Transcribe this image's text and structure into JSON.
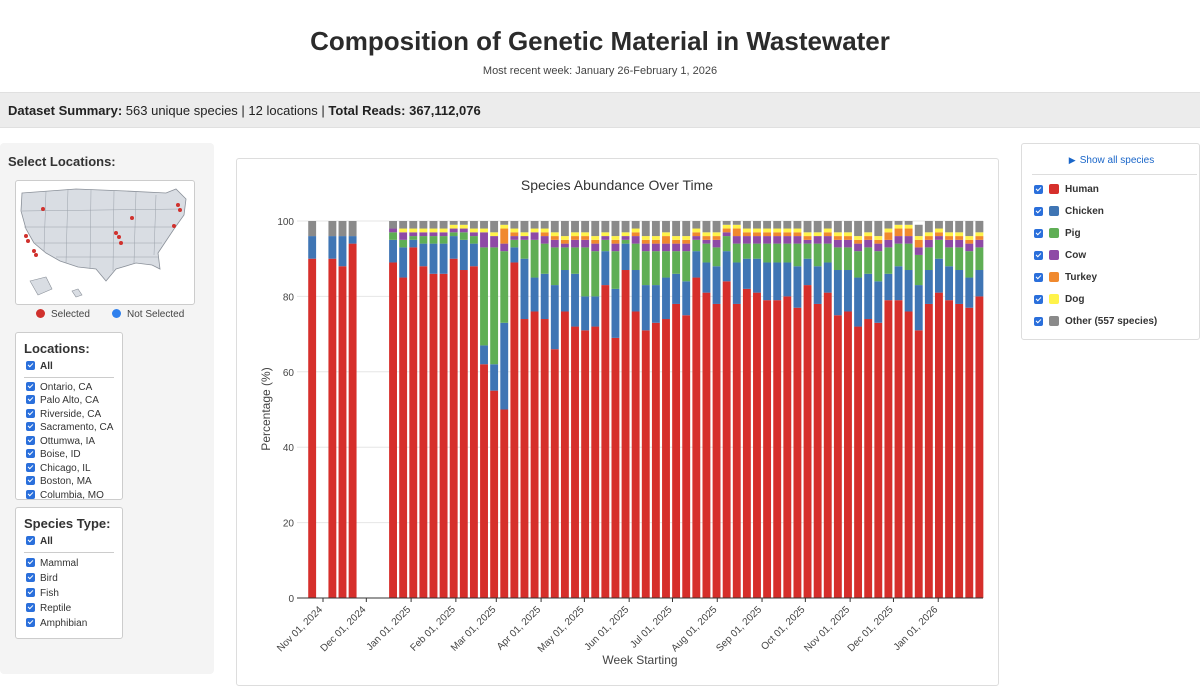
{
  "header": {
    "title": "Composition of Genetic Material in Wastewater",
    "subtitle": "Most recent week: January 26-February 1, 2026"
  },
  "summary": {
    "label": "Dataset Summary:",
    "stats": "563 unique species | 12 locations |",
    "reads_label": "Total Reads:",
    "reads_value": "367,112,076"
  },
  "sidebar": {
    "select_locations_title": "Select Locations:",
    "map_legend": {
      "selected": "Selected",
      "not_selected": "Not Selected",
      "selected_color": "#d0312d",
      "not_selected_color": "#2f80ed"
    },
    "locations": {
      "title": "Locations:",
      "all_label": "All",
      "items": [
        "Ontario, CA",
        "Palo Alto, CA",
        "Riverside, CA",
        "Sacramento, CA",
        "Ottumwa, IA",
        "Boise, ID",
        "Chicago, IL",
        "Boston, MA",
        "Columbia, MO"
      ]
    },
    "species_type": {
      "title": "Species Type:",
      "all_label": "All",
      "items": [
        "Mammal",
        "Bird",
        "Fish",
        "Reptile",
        "Amphibian"
      ]
    }
  },
  "legend_panel": {
    "show_all_label": "Show all species",
    "items": [
      {
        "label": "Human",
        "color": "#d62f2b"
      },
      {
        "label": "Chicken",
        "color": "#3f75b4"
      },
      {
        "label": "Pig",
        "color": "#5fae55"
      },
      {
        "label": "Cow",
        "color": "#8e4aa6"
      },
      {
        "label": "Turkey",
        "color": "#f0892e"
      },
      {
        "label": "Dog",
        "color": "#fff34a"
      },
      {
        "label": "Other (557 species)",
        "color": "#8a8a8a"
      }
    ]
  },
  "chart_data": {
    "type": "bar",
    "stacked": true,
    "title": "Species Abundance Over Time",
    "xlabel": "Week Starting",
    "ylabel": "Percentage (%)",
    "ylim": [
      0,
      100
    ],
    "yticks": [
      0,
      20,
      40,
      60,
      80,
      100
    ],
    "x_date_range": [
      "2024-10-14",
      "2026-02-01"
    ],
    "x_tick_labels": [
      "Nov 01, 2024",
      "Dec 01, 2024",
      "Jan 01, 2025",
      "Feb 01, 2025",
      "Mar 01, 2025",
      "Apr 01, 2025",
      "May 01, 2025",
      "Jun 01, 2025",
      "Jul 01, 2025",
      "Aug 01, 2025",
      "Sep 01, 2025",
      "Oct 01, 2025",
      "Nov 01, 2025",
      "Dec 01, 2025",
      "Jan 01, 2026"
    ],
    "x_tick_dates": [
      "2024-11-01",
      "2024-12-01",
      "2025-01-01",
      "2025-02-01",
      "2025-03-01",
      "2025-04-01",
      "2025-05-01",
      "2025-06-01",
      "2025-07-01",
      "2025-08-01",
      "2025-09-01",
      "2025-10-01",
      "2025-11-01",
      "2025-12-01",
      "2026-01-01"
    ],
    "categories": [
      "2024-10-21",
      "2024-11-04",
      "2024-11-11",
      "2024-11-18",
      "2024-12-16",
      "2024-12-23",
      "2024-12-30",
      "2025-01-06",
      "2025-01-13",
      "2025-01-20",
      "2025-01-27",
      "2025-02-03",
      "2025-02-10",
      "2025-02-17",
      "2025-02-24",
      "2025-03-03",
      "2025-03-10",
      "2025-03-17",
      "2025-03-24",
      "2025-03-31",
      "2025-04-07",
      "2025-04-14",
      "2025-04-21",
      "2025-04-28",
      "2025-05-05",
      "2025-05-12",
      "2025-05-19",
      "2025-05-26",
      "2025-06-02",
      "2025-06-09",
      "2025-06-16",
      "2025-06-23",
      "2025-06-30",
      "2025-07-07",
      "2025-07-14",
      "2025-07-21",
      "2025-07-28",
      "2025-08-04",
      "2025-08-11",
      "2025-08-18",
      "2025-08-25",
      "2025-09-01",
      "2025-09-08",
      "2025-09-15",
      "2025-09-22",
      "2025-09-29",
      "2025-10-06",
      "2025-10-13",
      "2025-10-20",
      "2025-10-27",
      "2025-11-03",
      "2025-11-10",
      "2025-11-17",
      "2025-11-24",
      "2025-12-01",
      "2025-12-08",
      "2025-12-15",
      "2025-12-22",
      "2025-12-29",
      "2026-01-05",
      "2026-01-12",
      "2026-01-19",
      "2026-01-26"
    ],
    "series": [
      {
        "name": "Human",
        "values": [
          90,
          90,
          88,
          94,
          89,
          85,
          93,
          88,
          86,
          86,
          90,
          87,
          88,
          62,
          55,
          50,
          89,
          74,
          76,
          74,
          66,
          76,
          72,
          71,
          72,
          83,
          69,
          87,
          76,
          71,
          73,
          74,
          78,
          75,
          85,
          81,
          78,
          84,
          78,
          82,
          81,
          79,
          79,
          80,
          77,
          83,
          78,
          81,
          75,
          76,
          72,
          74,
          73,
          79,
          79,
          76,
          71,
          78,
          81,
          79,
          78,
          77,
          80
        ]
      },
      {
        "name": "Chicken",
        "values": [
          6,
          6,
          8,
          2,
          6,
          8,
          2,
          6,
          8,
          8,
          6,
          8,
          6,
          5,
          7,
          23,
          4,
          16,
          9,
          12,
          17,
          11,
          14,
          9,
          8,
          9,
          13,
          7,
          11,
          12,
          10,
          11,
          8,
          9,
          7,
          8,
          10,
          8,
          11,
          8,
          9,
          10,
          10,
          9,
          11,
          7,
          10,
          8,
          12,
          11,
          13,
          12,
          11,
          7,
          9,
          11,
          12,
          9,
          9,
          9,
          9,
          8,
          7
        ]
      },
      {
        "name": "Pig",
        "values": [
          0,
          0,
          0,
          0,
          2,
          2,
          1,
          2,
          2,
          2,
          1,
          2,
          2,
          26,
          31,
          19,
          2,
          5,
          10,
          8,
          10,
          6,
          7,
          13,
          12,
          3,
          10,
          1,
          7,
          9,
          9,
          7,
          6,
          8,
          3,
          5,
          5,
          4,
          5,
          4,
          4,
          5,
          5,
          5,
          6,
          4,
          6,
          5,
          6,
          6,
          7,
          7,
          8,
          7,
          6,
          7,
          8,
          6,
          5,
          5,
          6,
          7,
          6
        ]
      },
      {
        "name": "Cow",
        "values": [
          0,
          0,
          0,
          0,
          1,
          2,
          1,
          1,
          1,
          1,
          1,
          1,
          1,
          4,
          3,
          2,
          1,
          1,
          2,
          2,
          2,
          1,
          2,
          2,
          2,
          1,
          2,
          1,
          2,
          2,
          2,
          2,
          2,
          2,
          1,
          1,
          2,
          1,
          2,
          2,
          2,
          2,
          2,
          2,
          2,
          1,
          2,
          2,
          2,
          2,
          2,
          2,
          2,
          2,
          2,
          2,
          2,
          2,
          1,
          2,
          2,
          2,
          2
        ]
      },
      {
        "name": "Turkey",
        "values": [
          0,
          0,
          0,
          0,
          0,
          0,
          0,
          0,
          0,
          0,
          0,
          0,
          0,
          0,
          0,
          4,
          1,
          0,
          0,
          1,
          1,
          1,
          1,
          1,
          1,
          0,
          1,
          0,
          1,
          1,
          1,
          2,
          1,
          1,
          1,
          1,
          1,
          1,
          2,
          1,
          1,
          1,
          1,
          1,
          1,
          1,
          0,
          1,
          1,
          1,
          1,
          1,
          1,
          2,
          2,
          2,
          2,
          1,
          1,
          1,
          1,
          1,
          1
        ]
      },
      {
        "name": "Dog",
        "values": [
          0,
          0,
          0,
          0,
          0,
          1,
          1,
          1,
          1,
          1,
          1,
          1,
          1,
          1,
          1,
          1,
          1,
          1,
          1,
          1,
          1,
          1,
          1,
          1,
          1,
          1,
          1,
          1,
          1,
          1,
          1,
          1,
          1,
          1,
          1,
          1,
          1,
          1,
          1,
          1,
          1,
          1,
          1,
          1,
          1,
          1,
          1,
          1,
          1,
          1,
          1,
          1,
          1,
          1,
          1,
          1,
          1,
          1,
          1,
          1,
          1,
          1,
          1
        ]
      },
      {
        "name": "Other (557 species)",
        "values": [
          4,
          4,
          4,
          4,
          2,
          2,
          2,
          2,
          2,
          2,
          1,
          1,
          2,
          2,
          3,
          1,
          2,
          3,
          2,
          2,
          3,
          4,
          3,
          3,
          4,
          3,
          4,
          3,
          2,
          4,
          4,
          3,
          4,
          4,
          2,
          3,
          3,
          1,
          1,
          2,
          2,
          2,
          2,
          2,
          2,
          3,
          3,
          2,
          3,
          3,
          4,
          3,
          4,
          2,
          1,
          1,
          3,
          3,
          2,
          3,
          3,
          4,
          3
        ]
      }
    ]
  }
}
